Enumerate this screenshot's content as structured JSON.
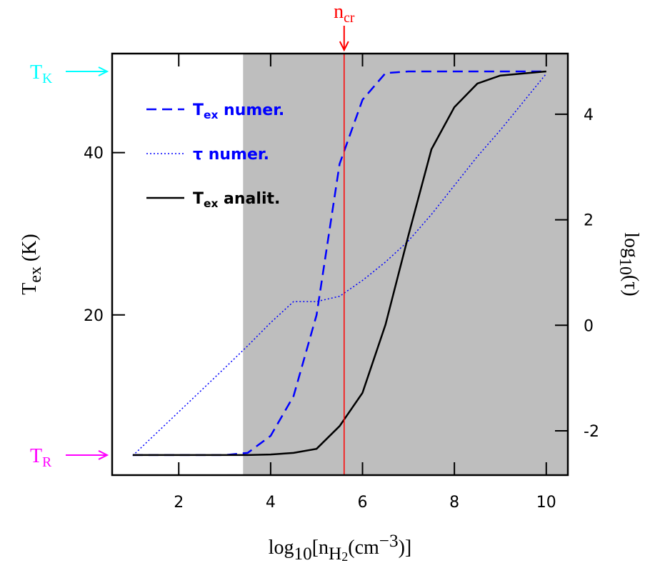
{
  "chart_data": {
    "type": "line",
    "xlabel": [
      {
        "text": "log"
      },
      {
        "text": "10",
        "shift": "sub"
      },
      {
        "text": "[n"
      },
      {
        "text": "H",
        "shift": "sub"
      },
      {
        "text": "2",
        "shift": "sub2"
      },
      {
        "text": "(cm"
      },
      {
        "text": "−3",
        "shift": "super"
      },
      {
        "text": ")]"
      }
    ],
    "ylabel": [
      {
        "text": "T"
      },
      {
        "text": "ex",
        "shift": "sub"
      },
      {
        "text": "  (K)"
      }
    ],
    "y2label": [
      {
        "text": "log"
      },
      {
        "text": "10",
        "shift": "sub"
      },
      {
        "text": "(τ)"
      }
    ],
    "x": [
      1,
      2,
      3,
      3.5,
      4,
      4.5,
      5,
      5.5,
      6,
      6.5,
      7,
      7.5,
      8,
      8.5,
      9,
      10
    ],
    "series": [
      {
        "name": [
          {
            "text": "T"
          },
          {
            "text": "ex",
            "shift": "sub"
          },
          {
            "text": " numer."
          }
        ],
        "color": "#0000ff",
        "dash": "dashed",
        "axis": "y",
        "values": [
          2.73,
          2.73,
          2.73,
          3.0,
          5.1,
          10,
          20,
          38.6,
          46.5,
          49.8,
          50,
          50,
          50,
          50,
          50,
          50
        ]
      },
      {
        "name": [
          {
            "text": "τ numer."
          }
        ],
        "color": "#0000ff",
        "dash": "dotted",
        "axis": "y2",
        "values": [
          -2.47,
          -1.64,
          -0.81,
          -0.39,
          0.05,
          0.45,
          0.45,
          0.55,
          0.85,
          1.2,
          1.6,
          2.1,
          2.65,
          3.2,
          3.7,
          4.77
        ]
      },
      {
        "name": [
          {
            "text": "T"
          },
          {
            "text": "ex",
            "shift": "sub"
          },
          {
            "text": " analit."
          }
        ],
        "color": "#000000",
        "dash": "solid",
        "axis": "y",
        "values": [
          2.73,
          2.73,
          2.73,
          2.73,
          2.8,
          3.0,
          3.5,
          6.3,
          10.4,
          18.8,
          29.8,
          40.4,
          45.6,
          48.5,
          49.5,
          50
        ]
      }
    ],
    "xlim": [
      0.55,
      10.47
    ],
    "xticks": [
      2,
      4,
      6,
      8,
      10
    ],
    "ylim": [
      0.26,
      52.2
    ],
    "yticks": [
      20,
      40
    ],
    "y2lim": [
      -2.84,
      5.15
    ],
    "y2ticks": [
      -2,
      0,
      2,
      4
    ],
    "legend": "upper left",
    "shade": {
      "from": 3.4,
      "color": "#bebebe"
    },
    "markers": [
      {
        "axis": "y",
        "value": 50,
        "color": "#00ffff",
        "label": [
          {
            "text": "T"
          },
          {
            "text": "K",
            "shift": "sub"
          }
        ]
      },
      {
        "axis": "y",
        "value": 2.73,
        "color": "#ff00ff",
        "label": [
          {
            "text": "T"
          },
          {
            "text": "R",
            "shift": "sub"
          }
        ]
      },
      {
        "axis": "x",
        "value": 5.6,
        "color": "#ff0000",
        "label": [
          {
            "text": "n"
          },
          {
            "text": "cr",
            "shift": "sub"
          }
        ]
      }
    ]
  }
}
